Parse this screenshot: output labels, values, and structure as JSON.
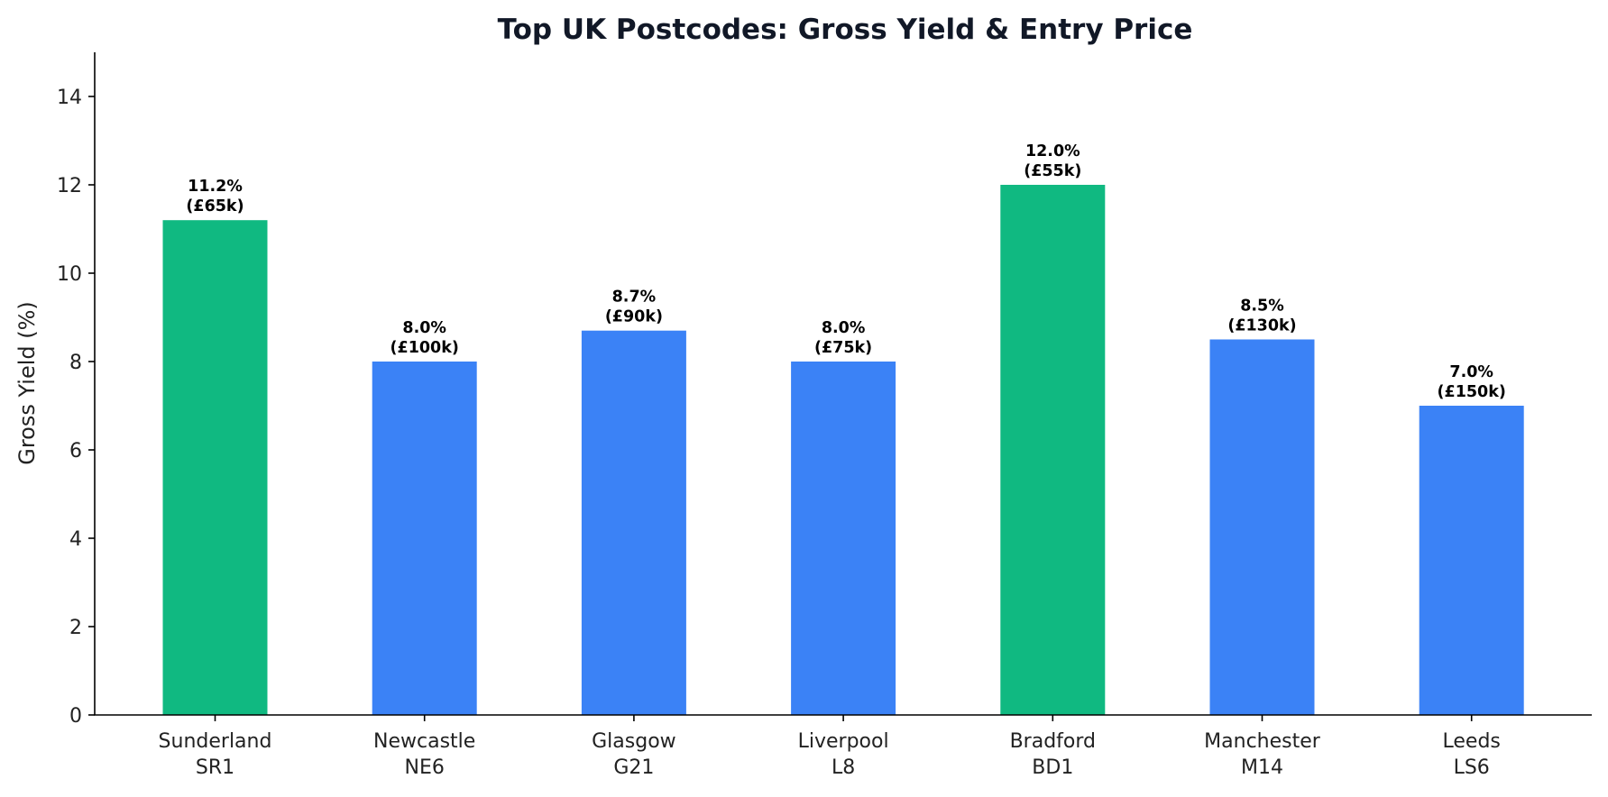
{
  "chart_data": {
    "type": "bar",
    "title": "Top UK Postcodes: Gross Yield & Entry Price",
    "xlabel": "",
    "ylabel": "Gross Yield (%)",
    "ylim": [
      0,
      15
    ],
    "yticks": [
      "0",
      "2",
      "4",
      "6",
      "8",
      "10",
      "12",
      "14"
    ],
    "grid": false,
    "legend": "none",
    "categories": [
      {
        "name": "Sunderland",
        "code": "SR1"
      },
      {
        "name": "Newcastle",
        "code": "NE6"
      },
      {
        "name": "Glasgow",
        "code": "G21"
      },
      {
        "name": "Liverpool",
        "code": "L8"
      },
      {
        "name": "Bradford",
        "code": "BD1"
      },
      {
        "name": "Manchester",
        "code": "M14"
      },
      {
        "name": "Leeds",
        "code": "LS6"
      }
    ],
    "values": [
      11.2,
      8.0,
      8.7,
      8.0,
      12.0,
      8.5,
      7.0
    ],
    "value_labels": [
      "11.2%",
      "8.0%",
      "8.7%",
      "8.0%",
      "12.0%",
      "8.5%",
      "7.0%"
    ],
    "price_labels": [
      "(£65k)",
      "(£100k)",
      "(£90k)",
      "(£75k)",
      "(£55k)",
      "(£130k)",
      "(£150k)"
    ],
    "highlight_threshold": 10,
    "colors": {
      "highlight": "#10b981",
      "default": "#3b82f6"
    }
  }
}
